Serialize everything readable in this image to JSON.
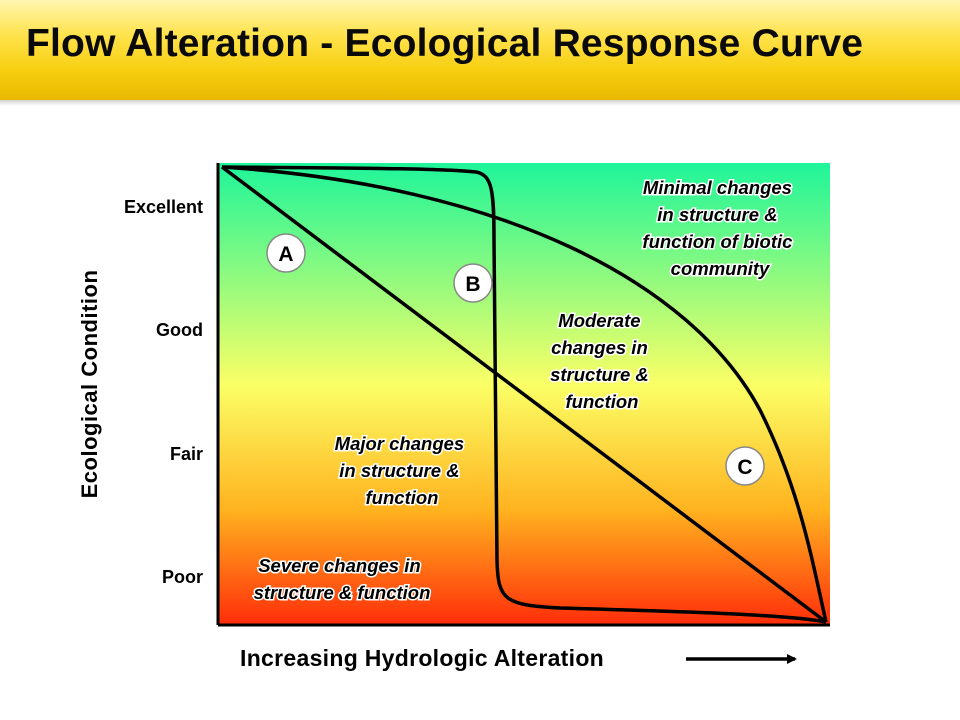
{
  "title": "Flow Alteration - Ecological Response Curve",
  "y_axis": {
    "title": "Ecological Condition",
    "ticks": [
      "Excellent",
      "Good",
      "Fair",
      "Poor"
    ]
  },
  "x_axis": {
    "title": "Increasing Hydrologic Alteration"
  },
  "curves": [
    {
      "label": "A"
    },
    {
      "label": "B"
    },
    {
      "label": "C"
    }
  ],
  "regions": {
    "minimal": [
      "Minimal changes",
      "in structure &",
      "function of biotic",
      "community"
    ],
    "moderate": [
      "Moderate",
      "changes in",
      "structure &",
      "function"
    ],
    "major": [
      "Major changes",
      "in structure &",
      "function"
    ],
    "severe": [
      "Severe changes in",
      "structure & function"
    ]
  },
  "colors": {
    "title_bar": "#f7cf10",
    "gradient_top": "#1ef59a",
    "gradient_mid": "#fbff66",
    "gradient_bottom": "#ff2d0a"
  }
}
